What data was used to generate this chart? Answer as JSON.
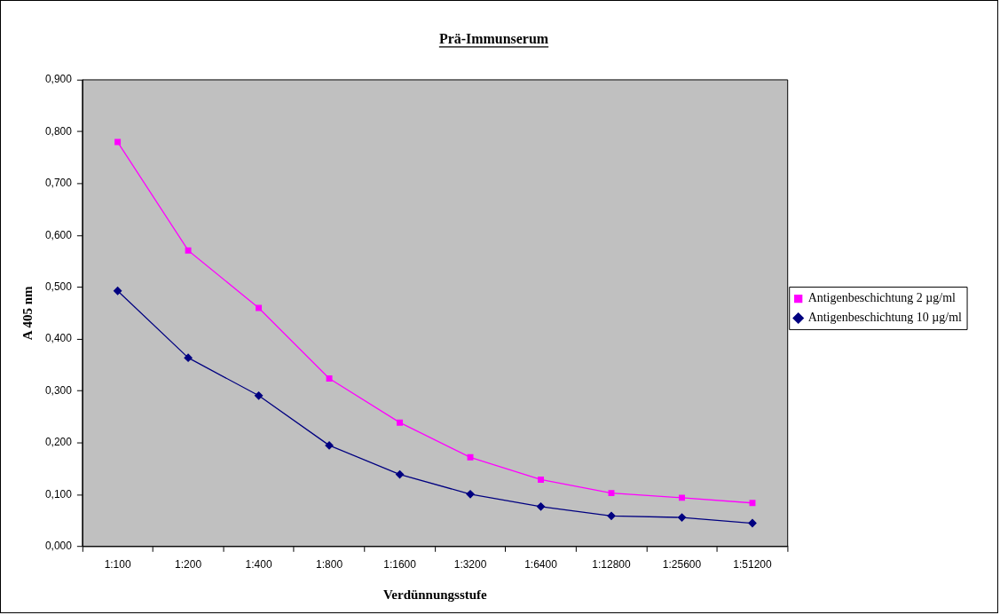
{
  "chart_data": {
    "type": "line",
    "title": "Prä-Immunserum",
    "xlabel": "Verdünnungsstufe",
    "ylabel": "A 405 nm",
    "categories": [
      "1:100",
      "1:200",
      "1:400",
      "1:800",
      "1:1600",
      "1:3200",
      "1:6400",
      "1:12800",
      "1:25600",
      "1:51200"
    ],
    "series": [
      {
        "name": "Antigenbeschichtung 2 µg/ml",
        "color": "#ff00ff",
        "marker": "square",
        "values": [
          0.78,
          0.571,
          0.46,
          0.324,
          0.239,
          0.172,
          0.129,
          0.103,
          0.094,
          0.084
        ]
      },
      {
        "name": "Antigenbeschichtung 10 µg/ml",
        "color": "#000080",
        "marker": "diamond",
        "values": [
          0.493,
          0.364,
          0.291,
          0.195,
          0.139,
          0.101,
          0.077,
          0.059,
          0.056,
          0.045
        ]
      }
    ],
    "ylim": [
      0,
      0.9
    ],
    "yticks": [
      {
        "value": 0,
        "label": "0,000"
      },
      {
        "value": 0.1,
        "label": "0,100"
      },
      {
        "value": 0.2,
        "label": "0,200"
      },
      {
        "value": 0.3,
        "label": "0,300"
      },
      {
        "value": 0.4,
        "label": "0,400"
      },
      {
        "value": 0.5,
        "label": "0,500"
      },
      {
        "value": 0.6,
        "label": "0,600"
      },
      {
        "value": 0.7,
        "label": "0,700"
      },
      {
        "value": 0.8,
        "label": "0,800"
      },
      {
        "value": 0.9,
        "label": "0,900"
      }
    ],
    "grid": false,
    "legend": "right",
    "line_style": "solid"
  }
}
